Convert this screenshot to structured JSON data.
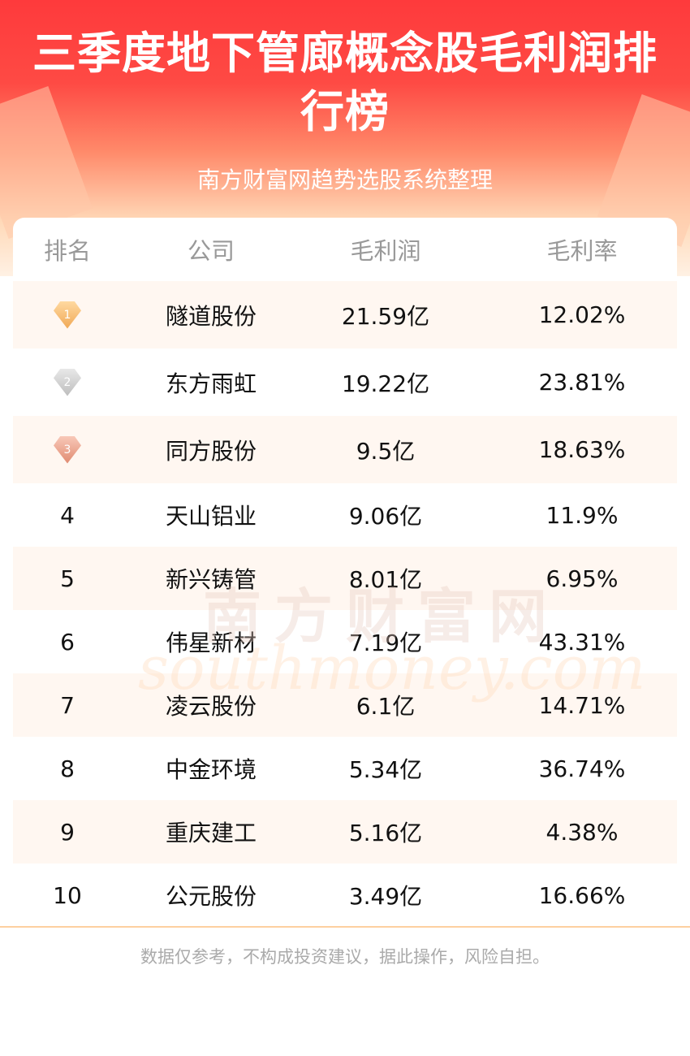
{
  "header": {
    "title": "三季度地下管廊概念股毛利润排行榜",
    "subtitle": "南方财富网趋势选股系统整理"
  },
  "table": {
    "columns": [
      "排名",
      "公司",
      "毛利润",
      "毛利率"
    ],
    "rows": [
      {
        "rank": "1",
        "company": "隧道股份",
        "profit": "21.59亿",
        "margin": "12.02%",
        "medal": "gold"
      },
      {
        "rank": "2",
        "company": "东方雨虹",
        "profit": "19.22亿",
        "margin": "23.81%",
        "medal": "silver"
      },
      {
        "rank": "3",
        "company": "同方股份",
        "profit": "9.5亿",
        "margin": "18.63%",
        "medal": "bronze"
      },
      {
        "rank": "4",
        "company": "天山铝业",
        "profit": "9.06亿",
        "margin": "11.9%"
      },
      {
        "rank": "5",
        "company": "新兴铸管",
        "profit": "8.01亿",
        "margin": "6.95%"
      },
      {
        "rank": "6",
        "company": "伟星新材",
        "profit": "7.19亿",
        "margin": "43.31%"
      },
      {
        "rank": "7",
        "company": "凌云股份",
        "profit": "6.1亿",
        "margin": "14.71%"
      },
      {
        "rank": "8",
        "company": "中金环境",
        "profit": "5.34亿",
        "margin": "36.74%"
      },
      {
        "rank": "9",
        "company": "重庆建工",
        "profit": "5.16亿",
        "margin": "4.38%"
      },
      {
        "rank": "10",
        "company": "公元股份",
        "profit": "3.49亿",
        "margin": "16.66%"
      }
    ]
  },
  "watermark": {
    "cn": "南方财富网",
    "en": "southmoney.com"
  },
  "footer": {
    "disclaimer": "数据仅参考，不构成投资建议，据此操作，风险自担。"
  },
  "colors": {
    "header_red": "#fe3a3c",
    "alt_row": "#fff7f1",
    "divider": "#fdd0a0"
  }
}
